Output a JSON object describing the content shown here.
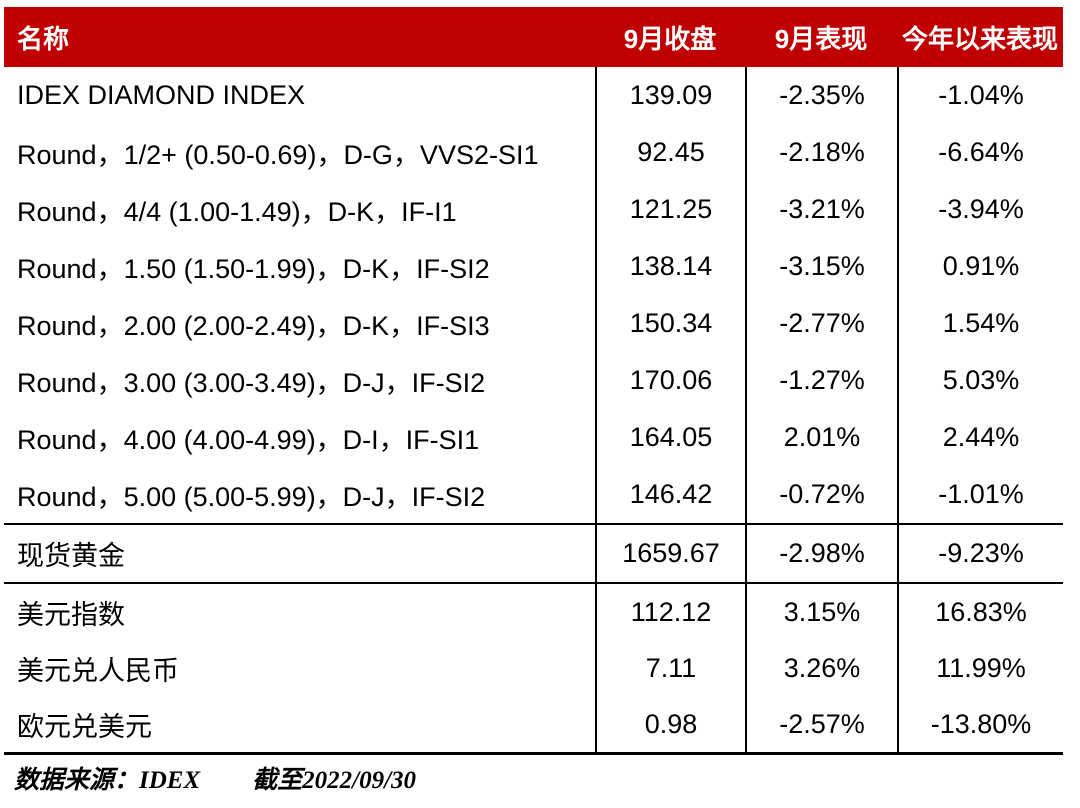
{
  "colors": {
    "header_bg": "#C00000",
    "header_text": "#FFFFFF",
    "line": "#000000",
    "body_text": "#000000"
  },
  "header": {
    "name": "名称",
    "close": "9月收盘",
    "month": "9月表现",
    "ytd": "今年以来表现"
  },
  "rows": [
    {
      "name": "IDEX DIAMOND INDEX",
      "close": "139.09",
      "month": "-2.35%",
      "ytd": "-1.04%"
    },
    {
      "name": "Round，1/2+ (0.50-0.69)，D-G，VVS2-SI1",
      "close": "92.45",
      "month": "-2.18%",
      "ytd": "-6.64%"
    },
    {
      "name": "Round，4/4 (1.00-1.49)，D-K，IF-I1",
      "close": "121.25",
      "month": "-3.21%",
      "ytd": "-3.94%"
    },
    {
      "name": "Round，1.50 (1.50-1.99)，D-K，IF-SI2",
      "close": "138.14",
      "month": "-3.15%",
      "ytd": "0.91%"
    },
    {
      "name": "Round，2.00 (2.00-2.49)，D-K，IF-SI3",
      "close": "150.34",
      "month": "-2.77%",
      "ytd": "1.54%"
    },
    {
      "name": "Round，3.00 (3.00-3.49)，D-J，IF-SI2",
      "close": "170.06",
      "month": "-1.27%",
      "ytd": "5.03%"
    },
    {
      "name": "Round，4.00 (4.00-4.99)，D-I，IF-SI1",
      "close": "164.05",
      "month": "2.01%",
      "ytd": "2.44%"
    },
    {
      "name": "Round，5.00 (5.00-5.99)，D-J，IF-SI2",
      "close": "146.42",
      "month": "-0.72%",
      "ytd": "-1.01%"
    },
    {
      "name": "现货黄金",
      "close": "1659.67",
      "month": "-2.98%",
      "ytd": "-9.23%"
    },
    {
      "name": "美元指数",
      "close": "112.12",
      "month": "3.15%",
      "ytd": "16.83%"
    },
    {
      "name": "美元兑人民币",
      "close": "7.11",
      "month": "3.26%",
      "ytd": "11.99%"
    },
    {
      "name": "欧元兑美元",
      "close": "0.98",
      "month": "-2.57%",
      "ytd": "-13.80%"
    }
  ],
  "footer": {
    "source": "数据来源：IDEX",
    "asof": "截至2022/09/30"
  }
}
